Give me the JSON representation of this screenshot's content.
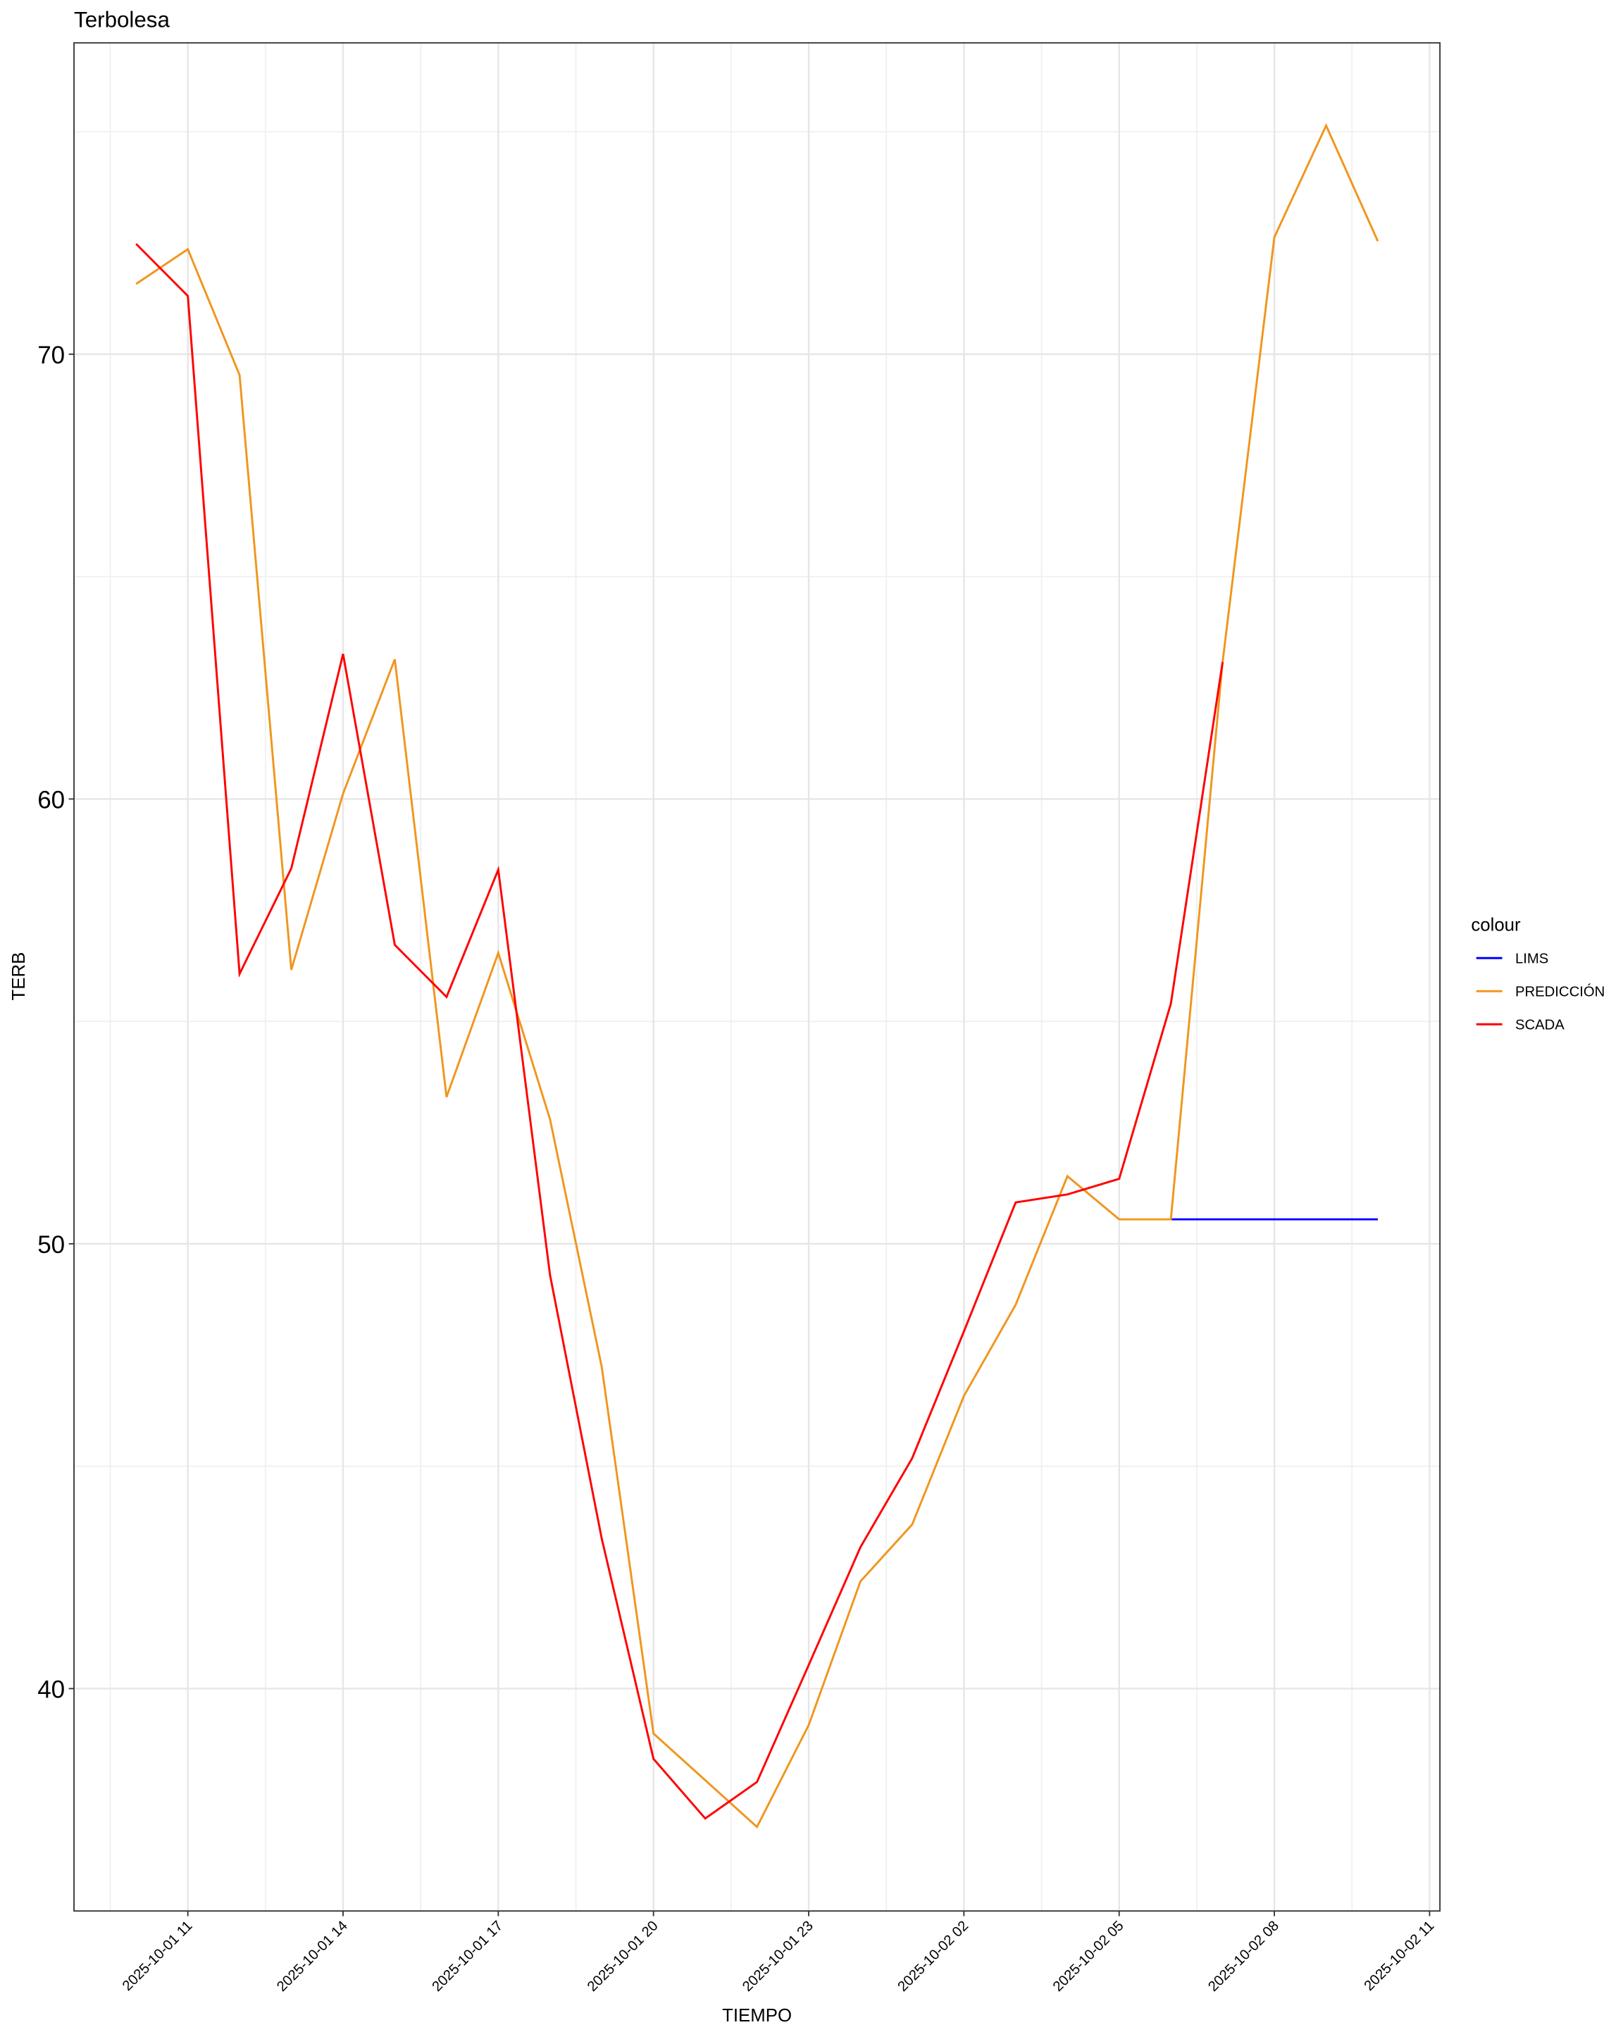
{
  "chart_data": {
    "type": "line",
    "title": "Terbolesa",
    "x_label": "TIEMPO",
    "y_label": "TERB",
    "legend_title": "colour",
    "legend_position": "right",
    "grid": true,
    "x": [
      "2025-10-01 10",
      "2025-10-01 11",
      "2025-10-01 12",
      "2025-10-01 13",
      "2025-10-01 14",
      "2025-10-01 15",
      "2025-10-01 16",
      "2025-10-01 17",
      "2025-10-01 18",
      "2025-10-01 19",
      "2025-10-01 20",
      "2025-10-01 21",
      "2025-10-01 22",
      "2025-10-01 23",
      "2025-10-02 00",
      "2025-10-02 01",
      "2025-10-02 02",
      "2025-10-02 03",
      "2025-10-02 04",
      "2025-10-02 05",
      "2025-10-02 06",
      "2025-10-02 07",
      "2025-10-02 08",
      "2025-10-02 09",
      "2025-10-02 10"
    ],
    "xticks": [
      "2025-10-01 11",
      "2025-10-01 14",
      "2025-10-01 17",
      "2025-10-01 20",
      "2025-10-01 23",
      "2025-10-02 02",
      "2025-10-02 05",
      "2025-10-02 08",
      "2025-10-02 11"
    ],
    "ylim": [
      35,
      77
    ],
    "yticks": [
      40,
      50,
      60,
      70
    ],
    "series": [
      {
        "name": "LIMS",
        "color": "#0000ff",
        "values": [
          null,
          null,
          null,
          null,
          null,
          null,
          null,
          null,
          null,
          null,
          null,
          null,
          null,
          null,
          null,
          null,
          null,
          null,
          null,
          null,
          50.55,
          50.55,
          50.55,
          50.55,
          50.55
        ]
      },
      {
        "name": "PREDICCIÓN",
        "color": "#f0961e",
        "values": [
          71.58,
          72.36,
          69.53,
          56.16,
          60.12,
          63.14,
          53.3,
          56.54,
          52.8,
          47.23,
          38.99,
          37.94,
          36.89,
          39.18,
          42.41,
          43.69,
          46.58,
          48.63,
          51.52,
          50.55,
          50.55,
          63.08,
          72.63,
          75.14,
          72.54
        ]
      },
      {
        "name": "SCADA",
        "color": "#ff0000",
        "values": [
          72.48,
          71.31,
          56.07,
          58.44,
          63.26,
          56.72,
          55.55,
          58.41,
          49.3,
          43.37,
          38.42,
          37.08,
          37.9,
          40.53,
          43.18,
          45.18,
          48.03,
          50.93,
          51.11,
          51.46,
          55.4,
          63.08,
          null,
          null,
          null
        ]
      }
    ]
  }
}
